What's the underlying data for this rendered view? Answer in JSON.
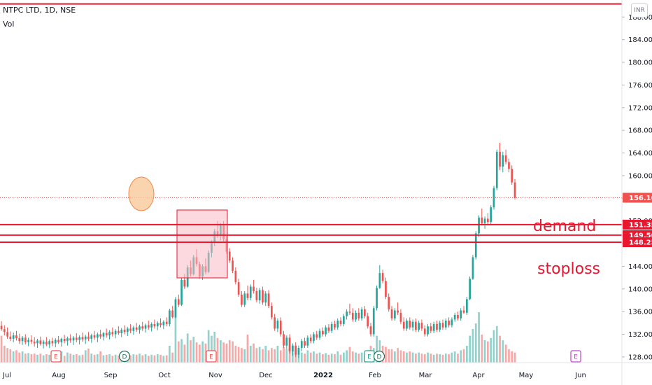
{
  "chart_data": {
    "type": "candlestick",
    "title": "NTPC LTD, 1D, NSE",
    "volume_label": "Vol",
    "currency": "INR",
    "y_range": [
      127,
      191
    ],
    "y_ticks": [
      "128.00",
      "132.00",
      "136.00",
      "140.00",
      "144.00",
      "148.00",
      "152.00",
      "156.00",
      "160.00",
      "164.00",
      "168.00",
      "172.00",
      "176.00",
      "180.00",
      "184.00",
      "188.00"
    ],
    "x_ticks": [
      "Jul",
      "Aug",
      "Sep",
      "Oct",
      "Nov",
      "Dec",
      "2022",
      "Feb",
      "Mar",
      "Apr",
      "May",
      "Jun"
    ],
    "last_price": "156.10",
    "levels": [
      {
        "value": 151.35,
        "label": "151.35"
      },
      {
        "value": 149.5,
        "label": "149.50"
      },
      {
        "value": 148.25,
        "label": "148.25"
      }
    ],
    "top_line": 190.3,
    "annotations": {
      "demand": "demand",
      "stoploss": "stoploss"
    },
    "event_markers": [
      "E",
      "D",
      "E",
      "E",
      "D",
      "E"
    ],
    "colors": {
      "up": "#26a69a",
      "down": "#ef5350",
      "line": "#e8162f",
      "box_fill": "#f7b9c4",
      "circle": "#f8c99b"
    },
    "candles": [
      [
        133.5,
        134.3,
        132.6,
        132.9
      ],
      [
        132.9,
        133.6,
        131.8,
        132.4
      ],
      [
        132.4,
        133.2,
        131.2,
        131.6
      ],
      [
        131.6,
        132.5,
        130.8,
        131.2
      ],
      [
        131.2,
        132.3,
        130.6,
        131.8
      ],
      [
        131.8,
        132.6,
        130.9,
        131.3
      ],
      [
        131.3,
        132.1,
        130.3,
        130.8
      ],
      [
        130.8,
        131.7,
        130.1,
        131.4
      ],
      [
        131.4,
        132.0,
        130.2,
        130.6
      ],
      [
        130.6,
        131.4,
        129.9,
        131.0
      ],
      [
        131.0,
        131.8,
        130.3,
        130.7
      ],
      [
        130.7,
        131.5,
        129.8,
        130.4
      ],
      [
        130.4,
        131.2,
        129.6,
        130.9
      ],
      [
        130.9,
        131.6,
        130.0,
        130.3
      ],
      [
        130.3,
        131.0,
        129.5,
        130.7
      ],
      [
        130.7,
        131.5,
        129.9,
        130.2
      ],
      [
        130.2,
        131.1,
        129.6,
        130.8
      ],
      [
        130.8,
        131.4,
        129.9,
        130.4
      ],
      [
        130.4,
        131.3,
        129.7,
        131.0
      ],
      [
        131.0,
        131.7,
        130.3,
        130.6
      ],
      [
        130.6,
        131.4,
        129.8,
        131.2
      ],
      [
        131.2,
        131.9,
        130.4,
        130.8
      ],
      [
        130.8,
        131.6,
        130.0,
        131.3
      ],
      [
        131.3,
        132.0,
        130.5,
        130.9
      ],
      [
        130.9,
        131.7,
        130.1,
        131.4
      ],
      [
        131.4,
        132.2,
        130.6,
        131.0
      ],
      [
        131.0,
        131.8,
        130.2,
        131.5
      ],
      [
        131.5,
        132.3,
        130.7,
        131.1
      ],
      [
        131.1,
        131.9,
        130.3,
        131.6
      ],
      [
        131.6,
        132.4,
        130.8,
        131.2
      ],
      [
        131.2,
        132.1,
        130.5,
        131.8
      ],
      [
        131.8,
        132.6,
        131.0,
        131.4
      ],
      [
        131.4,
        132.3,
        130.6,
        132.0
      ],
      [
        132.0,
        132.8,
        131.2,
        131.6
      ],
      [
        131.6,
        132.4,
        130.9,
        132.2
      ],
      [
        132.2,
        133.0,
        131.4,
        131.8
      ],
      [
        131.8,
        132.7,
        131.1,
        132.4
      ],
      [
        132.4,
        133.2,
        131.6,
        132.0
      ],
      [
        132.0,
        132.9,
        131.3,
        132.6
      ],
      [
        132.6,
        133.4,
        131.9,
        132.2
      ],
      [
        132.2,
        133.1,
        131.5,
        132.8
      ],
      [
        132.8,
        133.6,
        132.0,
        132.4
      ],
      [
        132.4,
        133.3,
        131.7,
        133.0
      ],
      [
        133.0,
        133.8,
        132.2,
        132.6
      ],
      [
        132.6,
        133.5,
        131.9,
        133.2
      ],
      [
        133.2,
        134.0,
        132.4,
        132.8
      ],
      [
        132.8,
        133.7,
        132.1,
        133.4
      ],
      [
        133.4,
        134.2,
        132.6,
        133.0
      ],
      [
        133.0,
        133.9,
        132.3,
        133.6
      ],
      [
        133.6,
        134.4,
        132.8,
        133.2
      ],
      [
        133.2,
        134.1,
        132.5,
        133.8
      ],
      [
        133.8,
        134.6,
        133.0,
        133.4
      ],
      [
        133.4,
        134.3,
        132.7,
        134.0
      ],
      [
        134.0,
        134.8,
        133.2,
        133.6
      ],
      [
        133.6,
        134.5,
        132.9,
        134.2
      ],
      [
        134.2,
        135.0,
        133.4,
        133.8
      ],
      [
        133.8,
        136.5,
        133.4,
        136.2
      ],
      [
        136.2,
        137.0,
        134.8,
        135.0
      ],
      [
        135.0,
        138.6,
        134.8,
        138.2
      ],
      [
        138.2,
        139.0,
        136.8,
        137.2
      ],
      [
        137.2,
        142.0,
        137.0,
        141.6
      ],
      [
        141.6,
        142.6,
        140.0,
        140.4
      ],
      [
        140.4,
        144.2,
        140.2,
        143.8
      ],
      [
        143.8,
        145.0,
        142.2,
        142.6
      ],
      [
        142.6,
        146.0,
        142.4,
        145.6
      ],
      [
        145.6,
        147.0,
        144.0,
        144.4
      ],
      [
        144.4,
        144.8,
        141.8,
        142.2
      ],
      [
        142.2,
        144.4,
        141.6,
        144.0
      ],
      [
        144.0,
        145.4,
        142.6,
        143.0
      ],
      [
        143.0,
        146.8,
        142.8,
        146.4
      ],
      [
        146.4,
        148.6,
        145.6,
        148.2
      ],
      [
        148.2,
        150.6,
        147.6,
        150.2
      ],
      [
        150.2,
        152.0,
        149.0,
        149.4
      ],
      [
        149.4,
        151.6,
        148.6,
        151.2
      ],
      [
        151.2,
        152.0,
        148.4,
        148.8
      ],
      [
        148.8,
        149.4,
        146.2,
        146.6
      ],
      [
        146.6,
        147.2,
        144.6,
        145.0
      ],
      [
        145.0,
        145.6,
        142.8,
        143.2
      ],
      [
        143.2,
        143.8,
        140.8,
        141.2
      ],
      [
        141.2,
        141.8,
        138.6,
        139.0
      ],
      [
        139.0,
        139.6,
        136.8,
        137.2
      ],
      [
        137.2,
        139.6,
        136.8,
        139.2
      ],
      [
        139.2,
        140.6,
        138.0,
        138.4
      ],
      [
        138.4,
        140.8,
        138.0,
        140.4
      ],
      [
        140.4,
        141.6,
        139.2,
        139.6
      ],
      [
        139.6,
        140.2,
        137.6,
        138.0
      ],
      [
        138.0,
        140.2,
        137.4,
        139.8
      ],
      [
        139.8,
        140.4,
        137.2,
        137.6
      ],
      [
        137.6,
        139.6,
        137.0,
        139.2
      ],
      [
        139.2,
        139.8,
        136.6,
        137.0
      ],
      [
        137.0,
        137.6,
        134.6,
        135.0
      ],
      [
        135.0,
        135.6,
        132.6,
        133.0
      ],
      [
        133.0,
        134.8,
        132.4,
        134.4
      ],
      [
        134.4,
        135.0,
        131.6,
        132.0
      ],
      [
        132.0,
        132.6,
        129.6,
        130.0
      ],
      [
        130.0,
        131.8,
        129.4,
        131.4
      ],
      [
        131.4,
        132.0,
        128.6,
        129.0
      ],
      [
        129.0,
        130.4,
        128.2,
        130.0
      ],
      [
        130.0,
        130.6,
        128.0,
        128.4
      ],
      [
        128.4,
        130.0,
        127.8,
        129.6
      ],
      [
        129.6,
        131.2,
        129.0,
        130.8
      ],
      [
        130.8,
        131.4,
        129.6,
        130.0
      ],
      [
        130.0,
        131.8,
        129.6,
        131.4
      ],
      [
        131.4,
        132.0,
        130.4,
        130.8
      ],
      [
        130.8,
        132.4,
        130.4,
        132.0
      ],
      [
        132.0,
        132.6,
        131.0,
        131.4
      ],
      [
        131.4,
        133.0,
        131.0,
        132.6
      ],
      [
        132.6,
        133.2,
        131.6,
        132.0
      ],
      [
        132.0,
        133.6,
        131.6,
        133.2
      ],
      [
        133.2,
        133.8,
        132.2,
        132.6
      ],
      [
        132.6,
        134.2,
        132.2,
        133.8
      ],
      [
        133.8,
        134.4,
        132.8,
        133.2
      ],
      [
        133.2,
        134.8,
        132.8,
        134.4
      ],
      [
        134.4,
        135.0,
        133.4,
        133.8
      ],
      [
        133.8,
        135.6,
        133.4,
        135.2
      ],
      [
        135.2,
        136.4,
        134.6,
        136.0
      ],
      [
        136.0,
        137.4,
        135.4,
        135.8
      ],
      [
        135.8,
        136.6,
        134.2,
        134.6
      ],
      [
        134.6,
        136.2,
        134.2,
        135.8
      ],
      [
        135.8,
        136.6,
        134.4,
        134.8
      ],
      [
        134.8,
        136.8,
        134.4,
        136.4
      ],
      [
        136.4,
        137.0,
        134.8,
        135.2
      ],
      [
        135.2,
        135.8,
        133.0,
        133.4
      ],
      [
        133.4,
        134.0,
        131.6,
        132.0
      ],
      [
        132.0,
        137.0,
        131.6,
        136.6
      ],
      [
        136.6,
        140.6,
        136.2,
        140.2
      ],
      [
        140.2,
        144.2,
        140.0,
        142.8
      ],
      [
        142.8,
        143.4,
        141.0,
        141.4
      ],
      [
        141.4,
        142.0,
        138.2,
        138.6
      ],
      [
        138.6,
        139.2,
        136.0,
        136.4
      ],
      [
        136.4,
        137.0,
        134.4,
        134.8
      ],
      [
        134.8,
        136.6,
        134.4,
        136.2
      ],
      [
        136.2,
        137.6,
        135.4,
        135.8
      ],
      [
        135.8,
        136.4,
        133.8,
        134.2
      ],
      [
        134.2,
        135.0,
        132.6,
        133.0
      ],
      [
        133.0,
        134.8,
        132.6,
        134.4
      ],
      [
        134.4,
        135.0,
        132.8,
        133.2
      ],
      [
        133.2,
        134.6,
        132.6,
        134.2
      ],
      [
        134.2,
        134.8,
        132.4,
        132.8
      ],
      [
        132.8,
        134.4,
        132.4,
        134.0
      ],
      [
        134.0,
        134.6,
        132.6,
        133.0
      ],
      [
        133.0,
        133.6,
        131.6,
        132.0
      ],
      [
        132.0,
        133.8,
        131.6,
        133.4
      ],
      [
        133.4,
        134.0,
        132.2,
        132.6
      ],
      [
        132.6,
        134.2,
        132.2,
        133.8
      ],
      [
        133.8,
        134.4,
        132.4,
        132.8
      ],
      [
        132.8,
        134.4,
        132.4,
        134.0
      ],
      [
        134.0,
        134.6,
        132.8,
        133.2
      ],
      [
        133.2,
        134.8,
        132.8,
        134.4
      ],
      [
        134.4,
        135.0,
        133.2,
        133.6
      ],
      [
        133.6,
        135.0,
        133.2,
        134.6
      ],
      [
        134.6,
        135.8,
        134.2,
        135.4
      ],
      [
        135.4,
        136.0,
        134.4,
        134.8
      ],
      [
        134.8,
        136.6,
        134.4,
        136.2
      ],
      [
        136.2,
        137.0,
        135.6,
        135.8
      ],
      [
        135.8,
        138.6,
        135.4,
        138.2
      ],
      [
        138.2,
        142.2,
        138.0,
        141.8
      ],
      [
        141.8,
        146.0,
        141.6,
        145.6
      ],
      [
        145.6,
        150.2,
        145.2,
        149.8
      ],
      [
        149.8,
        153.0,
        149.2,
        152.6
      ],
      [
        152.6,
        154.2,
        151.2,
        151.6
      ],
      [
        151.6,
        152.8,
        150.6,
        152.4
      ],
      [
        152.4,
        153.4,
        151.2,
        151.8
      ],
      [
        151.8,
        154.8,
        151.4,
        154.4
      ],
      [
        154.4,
        158.2,
        154.0,
        157.8
      ],
      [
        157.8,
        164.6,
        157.4,
        164.2
      ],
      [
        164.2,
        165.8,
        161.0,
        161.6
      ],
      [
        161.6,
        164.2,
        160.6,
        163.6
      ],
      [
        163.6,
        164.6,
        162.0,
        162.4
      ],
      [
        162.4,
        163.0,
        160.6,
        161.2
      ],
      [
        161.2,
        161.8,
        158.4,
        158.8
      ],
      [
        158.8,
        159.4,
        155.8,
        156.1
      ]
    ],
    "volume": [
      0.48,
      0.3,
      0.26,
      0.24,
      0.2,
      0.22,
      0.18,
      0.2,
      0.16,
      0.17,
      0.15,
      0.16,
      0.14,
      0.16,
      0.13,
      0.15,
      0.14,
      0.12,
      0.15,
      0.13,
      0.2,
      0.12,
      0.18,
      0.16,
      0.14,
      0.15,
      0.13,
      0.14,
      0.22,
      0.25,
      0.16,
      0.14,
      0.15,
      0.2,
      0.13,
      0.14,
      0.15,
      0.12,
      0.14,
      0.13,
      0.15,
      0.14,
      0.16,
      0.13,
      0.15,
      0.14,
      0.16,
      0.13,
      0.15,
      0.12,
      0.14,
      0.13,
      0.15,
      0.14,
      0.12,
      0.13,
      0.3,
      0.18,
      1.0,
      0.38,
      0.42,
      0.32,
      0.52,
      0.4,
      0.46,
      0.36,
      0.32,
      0.38,
      0.34,
      0.58,
      0.48,
      0.55,
      0.44,
      0.4,
      0.36,
      0.34,
      0.4,
      0.38,
      0.3,
      0.28,
      0.26,
      0.24,
      0.5,
      0.3,
      0.34,
      0.26,
      0.28,
      0.24,
      0.3,
      0.22,
      0.26,
      0.24,
      0.3,
      0.22,
      0.28,
      0.24,
      0.26,
      0.22,
      0.24,
      0.2,
      0.18,
      0.16,
      0.22,
      0.18,
      0.2,
      0.16,
      0.18,
      0.15,
      0.17,
      0.14,
      0.16,
      0.15,
      0.2,
      0.14,
      0.18,
      0.22,
      0.28,
      0.2,
      0.18,
      0.16,
      0.18,
      0.16,
      0.22,
      0.3,
      0.26,
      0.48,
      0.4,
      0.3,
      0.28,
      0.24,
      0.24,
      0.2,
      0.26,
      0.22,
      0.2,
      0.18,
      0.2,
      0.18,
      0.16,
      0.18,
      0.16,
      0.15,
      0.18,
      0.16,
      0.14,
      0.16,
      0.15,
      0.14,
      0.16,
      0.15,
      0.18,
      0.2,
      0.16,
      0.22,
      0.24,
      0.3,
      0.48,
      0.6,
      0.7,
      0.9,
      0.5,
      0.4,
      0.38,
      0.44,
      0.58,
      0.65,
      0.48,
      0.4,
      0.32,
      0.24,
      0.2,
      0.18
    ]
  }
}
